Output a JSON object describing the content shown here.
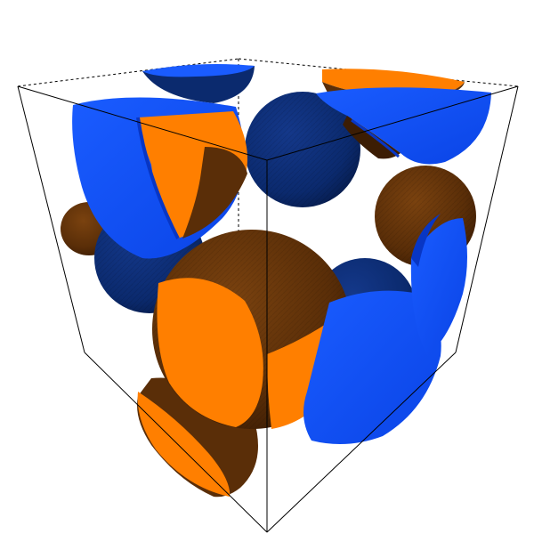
{
  "scene": {
    "background": "#ffffff",
    "box_line_color": "#000000",
    "colors": {
      "blue_cut": "#0a4dff",
      "blue_cut_dark": "#0836c4",
      "navy_sphere": "#0b2a6e",
      "navy_sphere_dark": "#061a48",
      "orange_cut": "#ff7f00",
      "brown_sphere": "#5a2e08",
      "brown_sphere_dark": "#3c1d04"
    }
  }
}
